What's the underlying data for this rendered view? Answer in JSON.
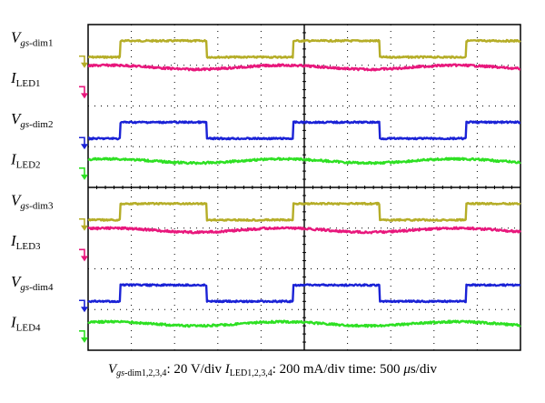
{
  "chart_data": {
    "type": "line",
    "title": "",
    "time_per_div": "500 μs/div",
    "x_divisions": 10,
    "y_divisions": 8,
    "grid": true,
    "duty_cycle": 0.5,
    "channels": [
      {
        "name": "Vgs-dim1",
        "label_main": "V",
        "label_sub": "gs-",
        "label_sub2": "dim1",
        "kind": "pwm",
        "color": "#b5ad27",
        "phase_div": 0.75,
        "levels_div": [
          0.2,
          0.6
        ],
        "baseline_div": 1.0
      },
      {
        "name": "ILED1",
        "label_main": "I",
        "label_sub": "LED1",
        "kind": "ripple",
        "color": "#e8177c",
        "amplitude_div": 0.05,
        "level_div": 0.7,
        "baseline_div": 1.75
      },
      {
        "name": "Vgs-dim2",
        "label_main": "V",
        "label_sub": "gs-",
        "label_sub2": "dim2",
        "kind": "pwm",
        "color": "#1a22d6",
        "phase_div": 0.75,
        "levels_div": [
          0.2,
          0.6
        ],
        "baseline_div": 3.0
      },
      {
        "name": "ILED2",
        "label_main": "I",
        "label_sub": "LED2",
        "kind": "ripple",
        "color": "#2ee023",
        "amplitude_div": 0.05,
        "level_div": 0.4,
        "baseline_div": 3.75
      },
      {
        "name": "Vgs-dim3",
        "label_main": "V",
        "label_sub": "gs-",
        "label_sub2": "dim3",
        "kind": "pwm",
        "color": "#b5ad27",
        "phase_div": 0.75,
        "levels_div": [
          0.2,
          0.6
        ],
        "baseline_div": 5.0
      },
      {
        "name": "ILED3",
        "label_main": "I",
        "label_sub": "LED3",
        "kind": "ripple",
        "color": "#e8177c",
        "amplitude_div": 0.05,
        "level_div": 0.7,
        "baseline_div": 5.75
      },
      {
        "name": "Vgs-dim4",
        "label_main": "V",
        "label_sub": "gs-",
        "label_sub2": "dim4",
        "kind": "pwm",
        "color": "#1a22d6",
        "phase_div": 0.75,
        "levels_div": [
          0.2,
          0.6
        ],
        "baseline_div": 7.0
      },
      {
        "name": "ILED4",
        "label_main": "I",
        "label_sub": "LED4",
        "kind": "ripple",
        "color": "#2ee023",
        "amplitude_div": 0.05,
        "level_div": 0.4,
        "baseline_div": 7.75
      }
    ],
    "caption": {
      "v_main": "V",
      "v_sub": "gs-",
      "v_sub2": "dim1,2,3,4",
      "v_scale": ": 20 V/div ",
      "i_main": "I",
      "i_sub": "LED1,2,3,4",
      "i_scale": ": 200 mA/div time: 500 ",
      "time_unit_mu": "μ",
      "time_unit_rest": "s/div"
    }
  }
}
